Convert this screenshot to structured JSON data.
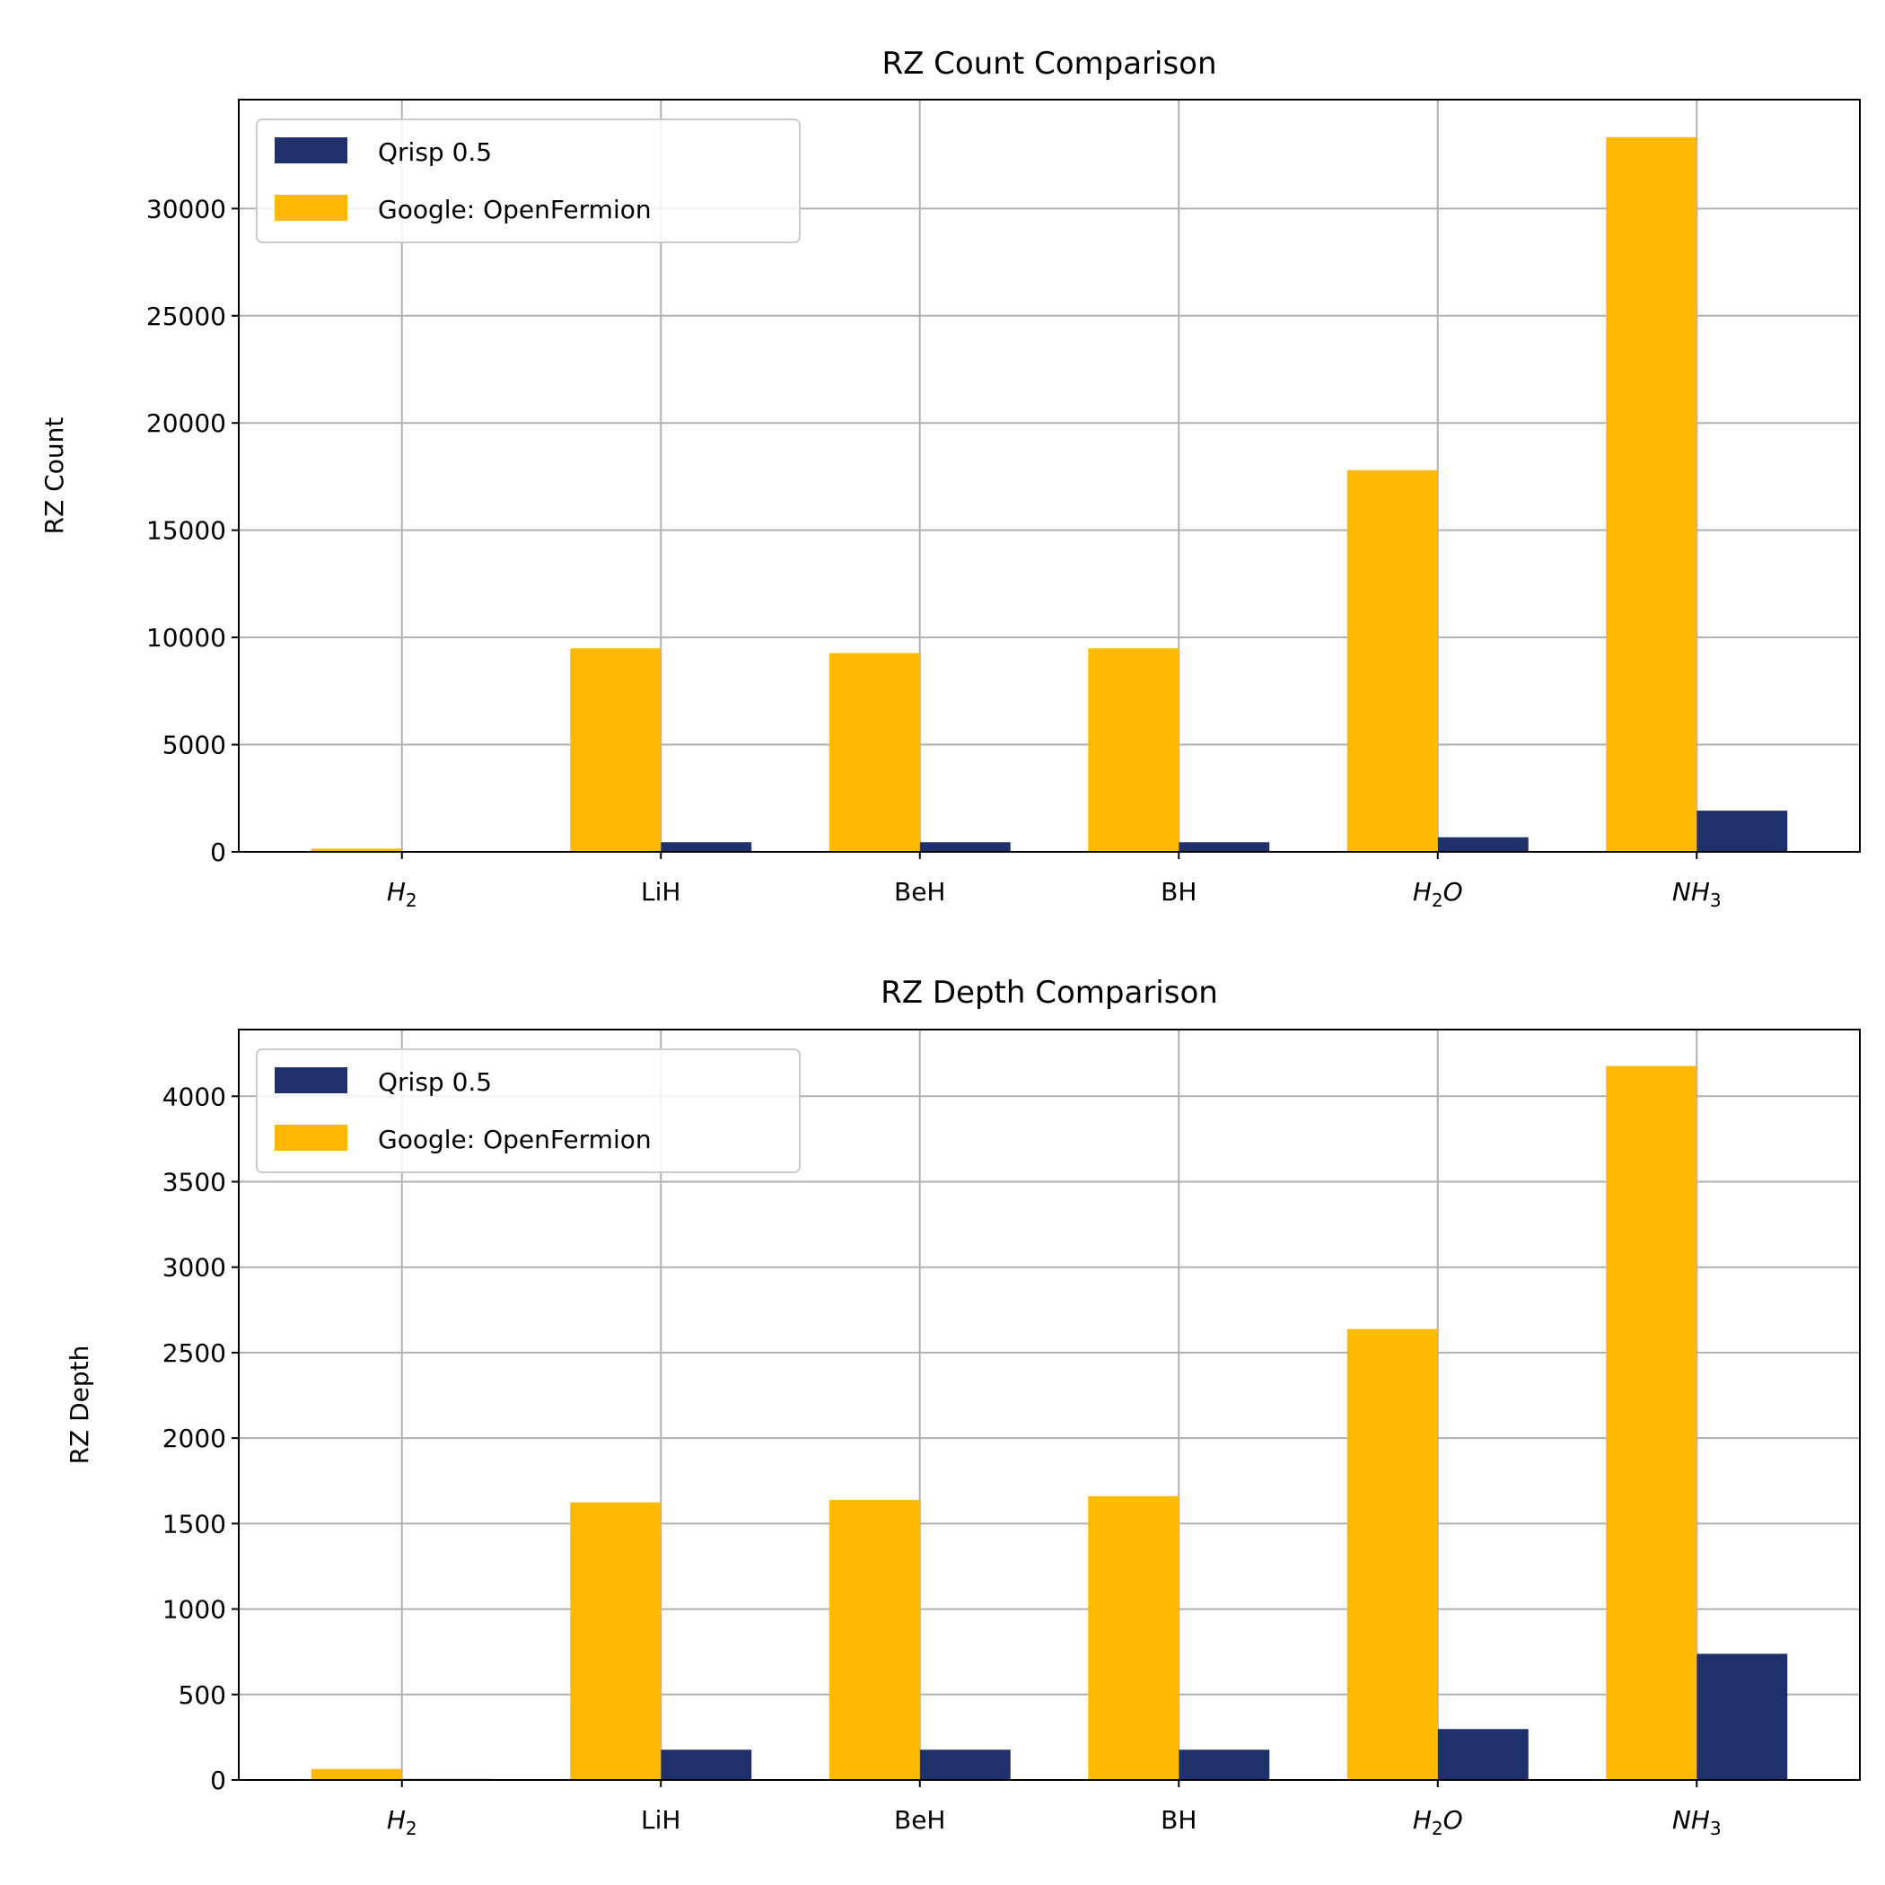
{
  "colors": {
    "qrisp": "#20306b",
    "openfermion": "#ffb901",
    "grid": "#b0b0b0"
  },
  "chart_data": [
    {
      "type": "bar",
      "title": "RZ Count Comparison",
      "xlabel": "",
      "ylabel": "RZ Count",
      "categories": [
        "H2",
        "LiH",
        "BeH",
        "BH",
        "H2O",
        "NH3"
      ],
      "yticks": [
        0,
        5000,
        10000,
        15000,
        20000,
        25000,
        30000
      ],
      "ylim": [
        0,
        35080
      ],
      "grid": true,
      "legend_position": "top-left",
      "series": [
        {
          "name": "Qrisp 0.5",
          "values": [
            10,
            450,
            450,
            450,
            680,
            1920
          ]
        },
        {
          "name": "Google: OpenFermion",
          "values": [
            150,
            9490,
            9270,
            9490,
            17800,
            33330
          ]
        }
      ]
    },
    {
      "type": "bar",
      "title": "RZ Depth Comparison",
      "xlabel": "",
      "ylabel": "RZ Depth",
      "categories": [
        "H2",
        "LiH",
        "BeH",
        "BH",
        "H2O",
        "NH3"
      ],
      "yticks": [
        0,
        500,
        1000,
        1500,
        2000,
        2500,
        3000,
        3500,
        4000
      ],
      "ylim": [
        0,
        4390
      ],
      "grid": true,
      "legend_position": "top-left",
      "series": [
        {
          "name": "Qrisp 0.5",
          "values": [
            6,
            177,
            177,
            177,
            298,
            738
          ]
        },
        {
          "name": "Google: OpenFermion",
          "values": [
            64,
            1624,
            1638,
            1660,
            2638,
            4177
          ]
        }
      ]
    }
  ]
}
